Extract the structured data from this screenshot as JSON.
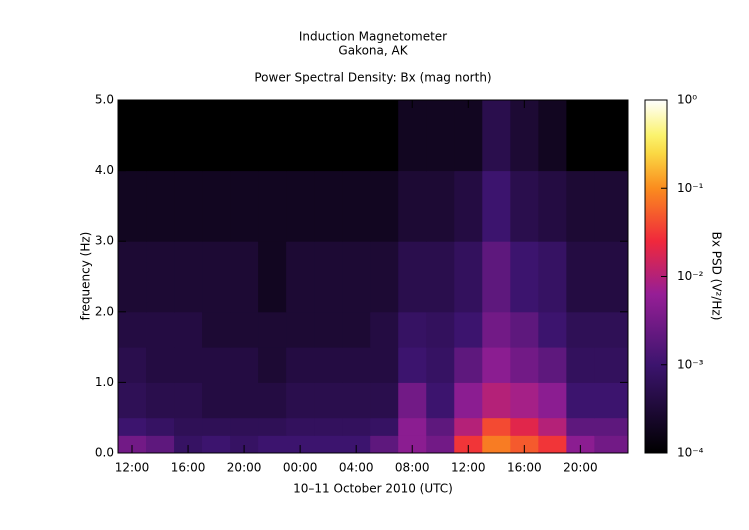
{
  "chart_data": {
    "type": "heatmap",
    "title": "Induction Magnetometer",
    "subtitle": "Gakona, AK",
    "plot_title": "Power Spectral Density: Bx (mag north)",
    "x_label": "10–11 October 2010 (UTC)",
    "y_label": "frequency (Hz)",
    "colorbar_label": "Bx PSD (V²/Hz)",
    "x_bins": [
      11,
      13,
      15,
      17,
      19,
      21,
      23,
      25,
      27,
      29,
      31,
      33,
      35,
      37,
      39,
      41,
      43,
      45,
      47.4
    ],
    "y_bins": [
      0,
      0.25,
      0.5,
      1,
      1.5,
      2,
      3,
      4,
      5
    ],
    "z": [
      [
        0.003,
        0.002,
        0.0008,
        0.001,
        0.0008,
        0.001,
        0.001,
        0.001,
        0.001,
        0.002,
        0.005,
        0.003,
        0.03,
        0.08,
        0.05,
        0.03,
        0.005,
        0.003
      ],
      [
        0.001,
        0.0008,
        0.0006,
        0.0006,
        0.0006,
        0.0006,
        0.0007,
        0.0007,
        0.0007,
        0.0008,
        0.005,
        0.002,
        0.01,
        0.04,
        0.02,
        0.01,
        0.002,
        0.002
      ],
      [
        0.0006,
        0.0005,
        0.0005,
        0.0004,
        0.0004,
        0.0004,
        0.0005,
        0.0005,
        0.0005,
        0.0005,
        0.003,
        0.001,
        0.005,
        0.01,
        0.008,
        0.005,
        0.001,
        0.001
      ],
      [
        0.0005,
        0.0004,
        0.0004,
        0.0004,
        0.0004,
        0.0003,
        0.0004,
        0.0004,
        0.0004,
        0.0004,
        0.001,
        0.0008,
        0.002,
        0.005,
        0.003,
        0.002,
        0.0007,
        0.0007
      ],
      [
        0.0004,
        0.0004,
        0.0004,
        0.0003,
        0.0003,
        0.0003,
        0.0003,
        0.0003,
        0.0003,
        0.0004,
        0.0008,
        0.0007,
        0.001,
        0.003,
        0.002,
        0.001,
        0.0006,
        0.0006
      ],
      [
        0.0003,
        0.0003,
        0.0003,
        0.0003,
        0.0003,
        0.0002,
        0.0003,
        0.0003,
        0.0003,
        0.0003,
        0.0005,
        0.0005,
        0.0007,
        0.002,
        0.001,
        0.0008,
        0.0004,
        0.0004
      ],
      [
        0.0002,
        0.0002,
        0.0002,
        0.0002,
        0.0002,
        0.0002,
        0.0002,
        0.0002,
        0.0002,
        0.0002,
        0.0003,
        0.0003,
        0.0004,
        0.001,
        0.0005,
        0.0004,
        0.0003,
        0.0003
      ],
      [
        0.0001,
        0.0001,
        0.0001,
        0.0001,
        0.0001,
        0.0001,
        0.0001,
        0.0001,
        0.0001,
        0.0001,
        0.0002,
        0.0002,
        0.0002,
        0.0005,
        0.0003,
        0.0002,
        0.0001,
        0.0001
      ]
    ],
    "xlim": [
      11,
      47.4
    ],
    "xticks": [
      {
        "value": 12,
        "label": "12:00"
      },
      {
        "value": 16,
        "label": "16:00"
      },
      {
        "value": 20,
        "label": "20:00"
      },
      {
        "value": 24,
        "label": "00:00"
      },
      {
        "value": 28,
        "label": "04:00"
      },
      {
        "value": 32,
        "label": "08:00"
      },
      {
        "value": 36,
        "label": "12:00"
      },
      {
        "value": 40,
        "label": "16:00"
      },
      {
        "value": 44,
        "label": "20:00"
      }
    ],
    "ylim": [
      0,
      5
    ],
    "yticks": [
      {
        "value": 0,
        "label": "0.0"
      },
      {
        "value": 1,
        "label": "1.0"
      },
      {
        "value": 2,
        "label": "2.0"
      },
      {
        "value": 3,
        "label": "3.0"
      },
      {
        "value": 4,
        "label": "4.0"
      },
      {
        "value": 5,
        "label": "5.0"
      }
    ],
    "color_scale": "log",
    "colorlim": [
      0.0001,
      1
    ],
    "colorticks": [
      {
        "value": 0.0001,
        "label": "10⁻⁴"
      },
      {
        "value": 0.001,
        "label": "10⁻³"
      },
      {
        "value": 0.01,
        "label": "10⁻²"
      },
      {
        "value": 0.1,
        "label": "10⁻¹"
      },
      {
        "value": 1,
        "label": "10⁰"
      }
    ]
  }
}
